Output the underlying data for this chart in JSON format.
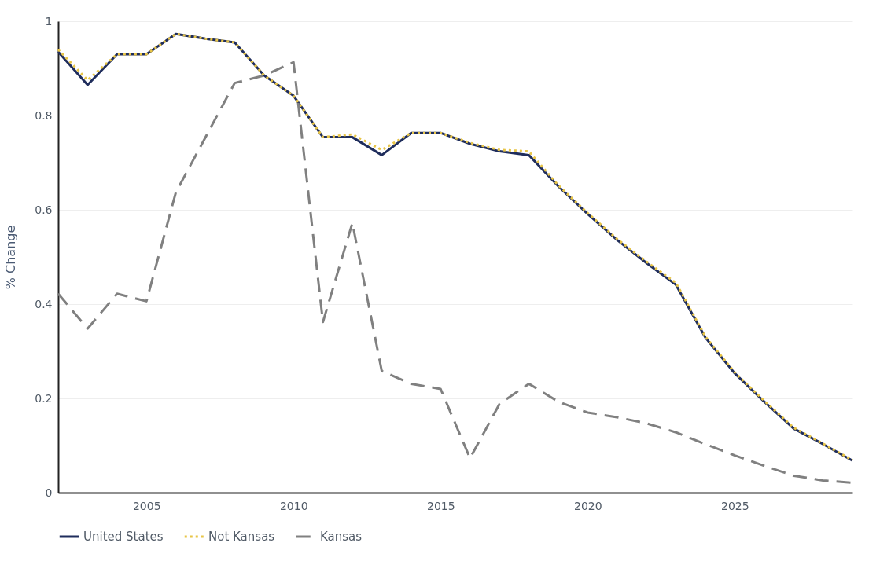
{
  "chart_data": {
    "type": "line",
    "ylabel": "% Change",
    "x": [
      2002,
      2003,
      2004,
      2005,
      2006,
      2007,
      2008,
      2009,
      2010,
      2011,
      2012,
      2013,
      2014,
      2015,
      2016,
      2017,
      2018,
      2019,
      2020,
      2021,
      2022,
      2023,
      2024,
      2025,
      2026,
      2027,
      2028,
      2029
    ],
    "series": [
      {
        "name": "United States",
        "color": "#1f2d5c",
        "line_style": "solid",
        "values": [
          0.935,
          0.865,
          0.93,
          0.93,
          0.973,
          0.963,
          0.955,
          0.885,
          0.842,
          0.754,
          0.754,
          0.716,
          0.763,
          0.763,
          0.74,
          0.724,
          0.716,
          0.65,
          0.591,
          0.536,
          0.487,
          0.441,
          0.329,
          0.253,
          0.193,
          0.136,
          0.103,
          0.068
        ]
      },
      {
        "name": "Not Kansas",
        "color": "#e8c547",
        "line_style": "dotted",
        "values": [
          0.94,
          0.875,
          0.93,
          0.93,
          0.973,
          0.963,
          0.955,
          0.885,
          0.842,
          0.754,
          0.76,
          0.727,
          0.763,
          0.763,
          0.742,
          0.727,
          0.724,
          0.652,
          0.593,
          0.538,
          0.49,
          0.445,
          0.331,
          0.255,
          0.195,
          0.138,
          0.104,
          0.069
        ]
      },
      {
        "name": "Kansas",
        "color": "#808080",
        "line_style": "dashed",
        "values": [
          0.422,
          0.348,
          0.422,
          0.406,
          0.637,
          0.753,
          0.869,
          0.885,
          0.913,
          0.362,
          0.572,
          0.258,
          0.231,
          0.22,
          0.073,
          0.188,
          0.231,
          0.193,
          0.17,
          0.16,
          0.147,
          0.128,
          0.103,
          0.079,
          0.057,
          0.036,
          0.026,
          0.021
        ]
      }
    ],
    "xlim": [
      2002,
      2029
    ],
    "xticks": [
      2005,
      2010,
      2015,
      2020,
      2025
    ],
    "ylim": [
      0,
      1
    ],
    "yticks": [
      0,
      0.2,
      0.4,
      0.6,
      0.8,
      1
    ],
    "grid": "y",
    "legend": "bottom"
  }
}
